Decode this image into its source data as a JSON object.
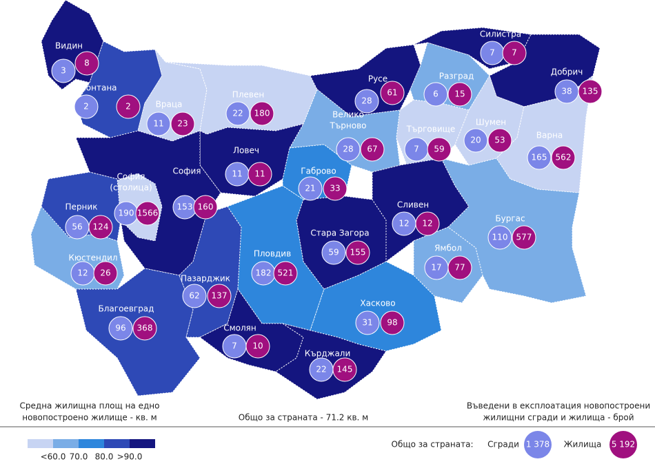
{
  "regions": [
    {
      "name": "Видин",
      "buildings": "3",
      "dwellings": "8",
      "color": "#14157f"
    },
    {
      "name": "Монтана",
      "buildings": "2",
      "dwellings": "2",
      "color": "#2e49b6"
    },
    {
      "name": "Враца",
      "buildings": "11",
      "dwellings": "23",
      "color": "#c7d4f3"
    },
    {
      "name": "Плевен",
      "buildings": "22",
      "dwellings": "180",
      "color": "#c7d4f3"
    },
    {
      "name": "Русе",
      "buildings": "28",
      "dwellings": "61",
      "color": "#14157f"
    },
    {
      "name": "Силистра",
      "buildings": "7",
      "dwellings": "7",
      "color": "#14157f"
    },
    {
      "name": "Разград",
      "buildings": "6",
      "dwellings": "15",
      "color": "#7aade6"
    },
    {
      "name": "Добрич",
      "buildings": "38",
      "dwellings": "135",
      "color": "#14157f"
    },
    {
      "name": [
        "Велико",
        "Търново"
      ],
      "buildings": "28",
      "dwellings": "67",
      "color": "#7aade6"
    },
    {
      "name": "Търговище",
      "buildings": "7",
      "dwellings": "59",
      "color": "#c7d4f3"
    },
    {
      "name": "Шумен",
      "buildings": "20",
      "dwellings": "53",
      "color": "#c7d4f3"
    },
    {
      "name": "Варна",
      "buildings": "165",
      "dwellings": "562",
      "color": "#c7d4f3"
    },
    {
      "name": "Ловеч",
      "buildings": "11",
      "dwellings": "11",
      "color": "#14157f"
    },
    {
      "name": "Габрово",
      "buildings": "21",
      "dwellings": "33",
      "color": "#2e86dc"
    },
    {
      "name": "София",
      "buildings": "153",
      "dwellings": "160",
      "color": "#14157f"
    },
    {
      "name": [
        "София",
        "(столица)"
      ],
      "buildings": "190",
      "dwellings": "1566",
      "color": "#c7d4f3"
    },
    {
      "name": "Перник",
      "buildings": "56",
      "dwellings": "124",
      "color": "#2e49b6"
    },
    {
      "name": "Кюстендил",
      "buildings": "12",
      "dwellings": "26",
      "color": "#7aade6"
    },
    {
      "name": "Благоевград",
      "buildings": "96",
      "dwellings": "368",
      "color": "#2e49b6"
    },
    {
      "name": "Пазарджик",
      "buildings": "62",
      "dwellings": "137",
      "color": "#2e49b6"
    },
    {
      "name": "Пловдив",
      "buildings": "182",
      "dwellings": "521",
      "color": "#2e86dc"
    },
    {
      "name": "Стара Загора",
      "buildings": "59",
      "dwellings": "155",
      "color": "#14157f"
    },
    {
      "name": "Сливен",
      "buildings": "12",
      "dwellings": "12",
      "color": "#14157f"
    },
    {
      "name": "Ямбол",
      "buildings": "17",
      "dwellings": "77",
      "color": "#7aade6"
    },
    {
      "name": "Бургас",
      "buildings": "110",
      "dwellings": "577",
      "color": "#7aade6"
    },
    {
      "name": "Хасково",
      "buildings": "31",
      "dwellings": "98",
      "color": "#2e86dc"
    },
    {
      "name": "Смолян",
      "buildings": "7",
      "dwellings": "10",
      "color": "#14157f"
    },
    {
      "name": "Кърджали",
      "buildings": "22",
      "dwellings": "145",
      "color": "#14157f"
    }
  ],
  "legend": {
    "title": [
      "Средна жилищна площ на едно",
      "новопостроено жилище - кв. м"
    ],
    "colors": [
      "#c7d4f3",
      "#7aade6",
      "#2e86dc",
      "#2e49b6",
      "#14157f"
    ],
    "labels": [
      "<60.0",
      "70.0",
      "80.0",
      ">90.0"
    ]
  },
  "country_average": "Общо за страната - 71.2 кв. м",
  "counts_title": [
    "Въведени в експлоатация новопостроени",
    "жилищни сгради и жилища - брой"
  ],
  "totals": {
    "label": "Общо за страната:",
    "buildings_label": "Сгради",
    "buildings": "1 378",
    "dwellings_label": "Жилища",
    "dwellings": "5 192",
    "buildings_color": "#7b86e8",
    "dwellings_color": "#a0107f"
  }
}
